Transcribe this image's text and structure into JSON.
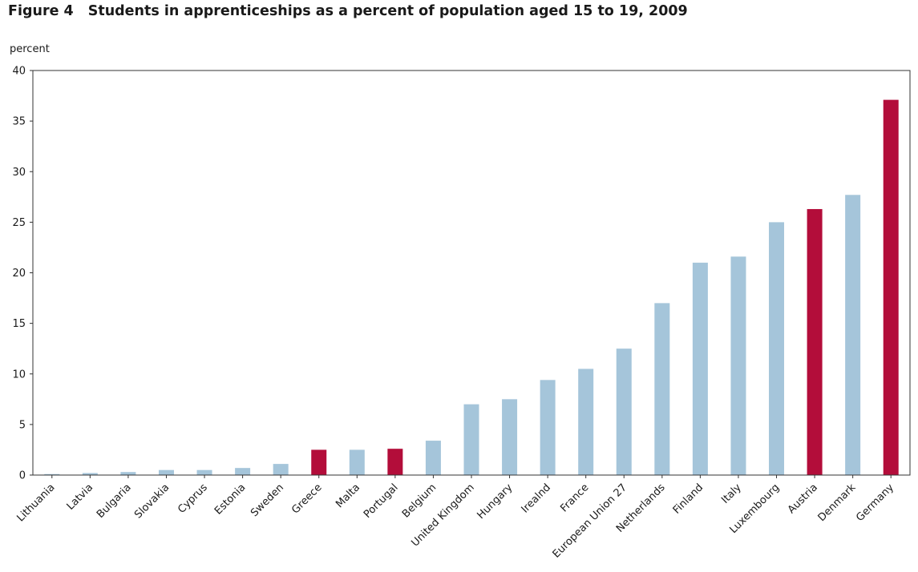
{
  "figure": {
    "number": "Figure 4",
    "title": "Students in apprenticeships as a percent of population aged 15 to 19, 2009"
  },
  "chart_data": {
    "type": "bar",
    "title": "Students in apprenticeships as a percent of population aged 15 to 19, 2009",
    "xlabel": "",
    "ylabel": "percent",
    "ylim": [
      0,
      40
    ],
    "yticks": [
      0,
      5,
      10,
      15,
      20,
      25,
      30,
      35,
      40
    ],
    "grid": false,
    "legend": "none",
    "categories": [
      "Lithuania",
      "Latvia",
      "Bulgaria",
      "Slovakia",
      "Cyprus",
      "Estonia",
      "Sweden",
      "Greece",
      "Malta",
      "Portugal",
      "Belgium",
      "United Kingdom",
      "Hungary",
      "Irealnd",
      "France",
      "European Union 27",
      "Netherlands",
      "Finland",
      "Italy",
      "Luxembourg",
      "Austria",
      "Denmark",
      "Germany"
    ],
    "values": [
      0.1,
      0.2,
      0.3,
      0.5,
      0.5,
      0.7,
      1.1,
      2.5,
      2.5,
      2.6,
      3.4,
      7.0,
      7.5,
      9.4,
      10.5,
      12.5,
      17.0,
      21.0,
      21.6,
      25.0,
      26.3,
      27.7,
      37.1
    ],
    "highlighted": [
      "Greece",
      "Portugal",
      "Austria",
      "Germany"
    ],
    "colors": {
      "default": "#a5c5da",
      "highlight": "#b30d3a",
      "axis": "#333333"
    }
  }
}
